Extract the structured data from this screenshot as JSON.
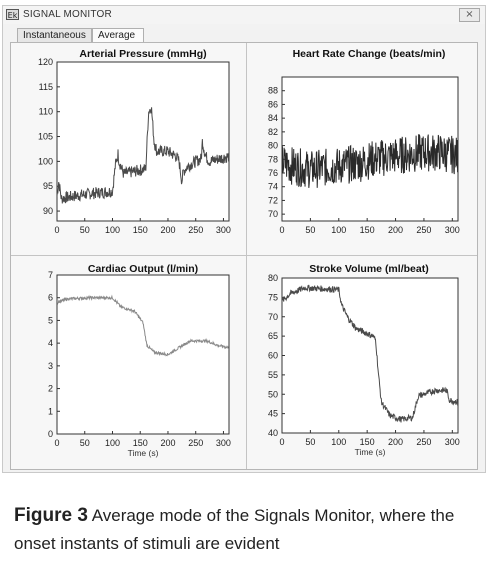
{
  "window": {
    "title": "SIGNAL MONITOR",
    "icon": "app-icon",
    "icon_glyph": "Ek",
    "close_glyph": "×"
  },
  "tabs": [
    {
      "label": "Instantaneous",
      "active": false
    },
    {
      "label": "Average",
      "active": true
    }
  ],
  "caption": {
    "label": "Figure 3",
    "text": "Average mode of the Signals Monitor, where the onset instants of stimuli are evident"
  },
  "chart_data": [
    {
      "type": "line",
      "title": "Arterial Pressure (mmHg)",
      "xlabel": "",
      "ylabel": "",
      "xlim": [
        0,
        310
      ],
      "ylim": [
        88,
        120
      ],
      "xticks": [
        0,
        50,
        100,
        150,
        200,
        250,
        300
      ],
      "yticks": [
        90,
        95,
        100,
        105,
        110,
        115,
        120
      ],
      "color": "#4a4a4a",
      "noise": 1.2,
      "x": [
        0,
        3,
        8,
        30,
        60,
        100,
        105,
        110,
        112,
        120,
        140,
        160,
        165,
        170,
        175,
        180,
        200,
        215,
        220,
        225,
        228,
        235,
        250,
        260,
        262,
        268,
        275,
        290,
        310
      ],
      "y": [
        93,
        96,
        92.5,
        93,
        93.5,
        94,
        99,
        101.5,
        100,
        97.5,
        98,
        98.5,
        110,
        111,
        104,
        102,
        102,
        101,
        100,
        96,
        98,
        99,
        100,
        100.5,
        104,
        101,
        100,
        100.5,
        101
      ]
    },
    {
      "type": "line",
      "title": "Heart Rate Change (beats/min)",
      "xlabel": "",
      "ylabel": "",
      "xlim": [
        0,
        310
      ],
      "ylim": [
        69,
        90
      ],
      "xticks": [
        0,
        50,
        100,
        150,
        200,
        250,
        300
      ],
      "yticks": [
        70,
        72,
        74,
        76,
        78,
        80,
        82,
        84,
        86,
        88
      ],
      "color": "#2a2a2a",
      "noise": 2.8,
      "x": [
        0,
        20,
        50,
        100,
        140,
        160,
        200,
        250,
        280,
        310
      ],
      "y": [
        77.5,
        77,
        76.5,
        77,
        77.5,
        78,
        78.5,
        79,
        79,
        78.5
      ]
    },
    {
      "type": "line",
      "title": "Cardiac Output (l/min)",
      "xlabel": "Time (s)",
      "ylabel": "",
      "xlim": [
        0,
        310
      ],
      "ylim": [
        0,
        7
      ],
      "xticks": [
        0,
        50,
        100,
        150,
        200,
        250,
        300
      ],
      "yticks": [
        0,
        1,
        2,
        3,
        4,
        5,
        6,
        7
      ],
      "color": "#8a8a8a",
      "noise": 0.06,
      "x": [
        0,
        20,
        60,
        100,
        115,
        140,
        155,
        162,
        175,
        200,
        220,
        240,
        270,
        290,
        310
      ],
      "y": [
        5.8,
        5.95,
        6.0,
        6.0,
        5.6,
        5.4,
        4.9,
        3.9,
        3.6,
        3.5,
        3.8,
        4.1,
        4.1,
        3.9,
        3.8
      ]
    },
    {
      "type": "line",
      "title": "Stroke Volume (ml/beat)",
      "xlabel": "Time (s)",
      "ylabel": "",
      "xlim": [
        0,
        310
      ],
      "ylim": [
        40,
        80
      ],
      "xticks": [
        0,
        50,
        100,
        150,
        200,
        250,
        300
      ],
      "yticks": [
        40,
        45,
        50,
        55,
        60,
        65,
        70,
        75,
        80
      ],
      "color": "#4a4a4a",
      "noise": 0.8,
      "x": [
        0,
        15,
        40,
        100,
        105,
        115,
        130,
        160,
        165,
        170,
        175,
        190,
        210,
        230,
        240,
        270,
        290,
        295,
        310
      ],
      "y": [
        74,
        76,
        77.5,
        77,
        73,
        70,
        67,
        65,
        64,
        55,
        48,
        44.5,
        43.5,
        44,
        49.5,
        51,
        51,
        48.5,
        48
      ]
    }
  ]
}
